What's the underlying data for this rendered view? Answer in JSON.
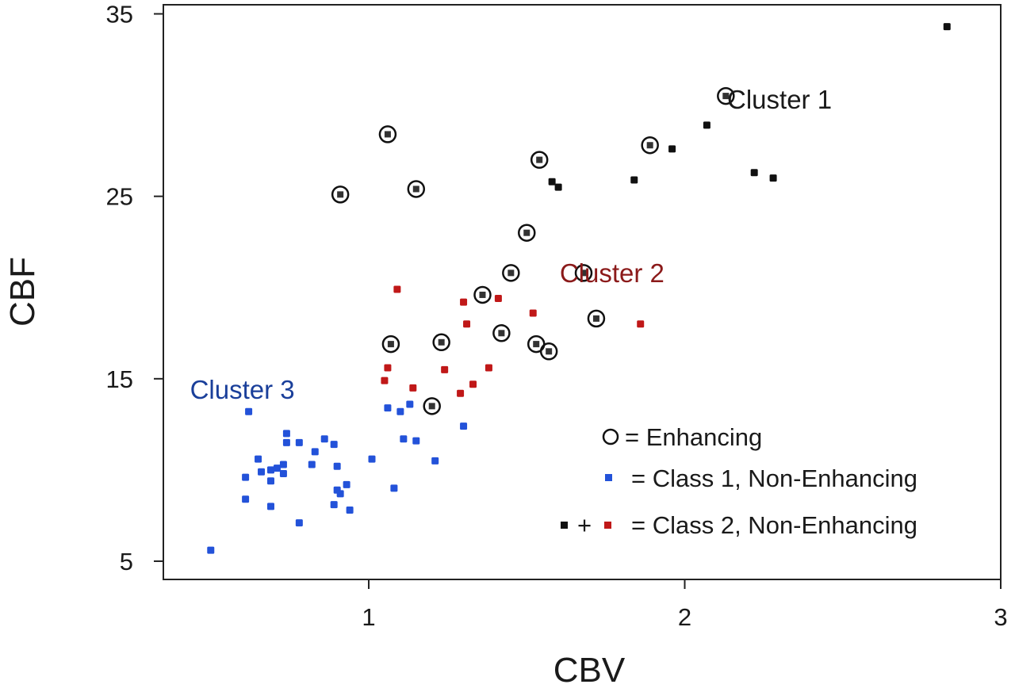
{
  "chart_data": {
    "type": "scatter",
    "title": "",
    "xlabel": "CBV",
    "ylabel": "CBF",
    "xlim": [
      0.35,
      3.0
    ],
    "ylim": [
      4.0,
      35.5
    ],
    "xticks": [
      1,
      2,
      3
    ],
    "yticks": [
      5,
      15,
      25,
      35
    ],
    "xtick_labels": [
      "1",
      "2",
      "3"
    ],
    "ytick_labels": [
      "5",
      "15",
      "25",
      "35"
    ],
    "grid": false,
    "legend_position": "bottom-right",
    "colors": {
      "class1": "#2352d9",
      "class2_red": "#c01818",
      "class2_black": "#111111",
      "cluster1_label": "#1a1a1a",
      "cluster2_label": "#8b1a1a",
      "cluster3_label": "#1a3f9a"
    },
    "annotations": [
      {
        "text": "Cluster 1",
        "x": 2.3,
        "y": 29.8,
        "color": "#1a1a1a"
      },
      {
        "text": "Cluster 2",
        "x": 1.77,
        "y": 20.3,
        "color": "#8b1a1a"
      },
      {
        "text": "Cluster 3",
        "x": 0.6,
        "y": 13.9,
        "color": "#1a3f9a"
      }
    ],
    "legend": {
      "enhancing": "= Enhancing",
      "class1": "= Class 1, Non-Enhancing",
      "class2_plus": "+",
      "class2": "= Class 2, Non-Enhancing"
    },
    "series": [
      {
        "name": "Enhancing",
        "marker": "open-circle",
        "points": [
          [
            1.06,
            28.4
          ],
          [
            0.91,
            25.1
          ],
          [
            1.15,
            25.4
          ],
          [
            1.54,
            27.0
          ],
          [
            1.89,
            27.8
          ],
          [
            2.13,
            30.5
          ],
          [
            1.5,
            23.0
          ],
          [
            1.45,
            20.8
          ],
          [
            1.36,
            19.6
          ],
          [
            1.68,
            20.8
          ],
          [
            1.72,
            18.3
          ],
          [
            1.07,
            16.9
          ],
          [
            1.23,
            17.0
          ],
          [
            1.42,
            17.5
          ],
          [
            1.53,
            16.9
          ],
          [
            1.57,
            16.5
          ],
          [
            1.2,
            13.5
          ]
        ]
      },
      {
        "name": "Class 1, Non-Enhancing",
        "marker": "dot",
        "color": "#2352d9",
        "points": [
          [
            0.62,
            13.2
          ],
          [
            0.61,
            9.6
          ],
          [
            0.61,
            8.4
          ],
          [
            0.65,
            10.6
          ],
          [
            0.66,
            9.9
          ],
          [
            0.69,
            9.4
          ],
          [
            0.69,
            10.0
          ],
          [
            0.71,
            10.1
          ],
          [
            0.69,
            8.0
          ],
          [
            0.73,
            10.3
          ],
          [
            0.74,
            12.0
          ],
          [
            0.74,
            11.5
          ],
          [
            0.73,
            9.8
          ],
          [
            0.78,
            11.5
          ],
          [
            0.78,
            7.1
          ],
          [
            0.82,
            10.3
          ],
          [
            0.83,
            11.0
          ],
          [
            0.86,
            11.7
          ],
          [
            0.89,
            11.4
          ],
          [
            0.9,
            10.2
          ],
          [
            0.9,
            8.9
          ],
          [
            0.91,
            8.7
          ],
          [
            0.89,
            8.1
          ],
          [
            0.93,
            9.2
          ],
          [
            0.94,
            7.8
          ],
          [
            1.01,
            10.6
          ],
          [
            1.06,
            13.4
          ],
          [
            1.1,
            13.2
          ],
          [
            1.13,
            13.6
          ],
          [
            1.11,
            11.7
          ],
          [
            1.15,
            11.6
          ],
          [
            1.08,
            9.0
          ],
          [
            1.21,
            10.5
          ],
          [
            1.3,
            12.4
          ],
          [
            0.5,
            5.6
          ]
        ]
      },
      {
        "name": "Class 2, Non-Enhancing (red)",
        "marker": "dot",
        "color": "#c01818",
        "points": [
          [
            1.05,
            14.9
          ],
          [
            1.06,
            15.6
          ],
          [
            1.14,
            14.5
          ],
          [
            1.09,
            19.9
          ],
          [
            1.24,
            15.5
          ],
          [
            1.29,
            14.2
          ],
          [
            1.3,
            19.2
          ],
          [
            1.31,
            18.0
          ],
          [
            1.33,
            14.7
          ],
          [
            1.38,
            15.6
          ],
          [
            1.41,
            19.4
          ],
          [
            1.52,
            18.6
          ],
          [
            1.86,
            18.0
          ]
        ]
      },
      {
        "name": "Class 2, Non-Enhancing (black)",
        "marker": "dot",
        "color": "#111111",
        "points": [
          [
            1.58,
            25.8
          ],
          [
            1.6,
            25.5
          ],
          [
            1.84,
            25.9
          ],
          [
            1.96,
            27.6
          ],
          [
            2.07,
            28.9
          ],
          [
            2.22,
            26.3
          ],
          [
            2.28,
            26.0
          ],
          [
            2.83,
            34.3
          ]
        ]
      }
    ]
  }
}
